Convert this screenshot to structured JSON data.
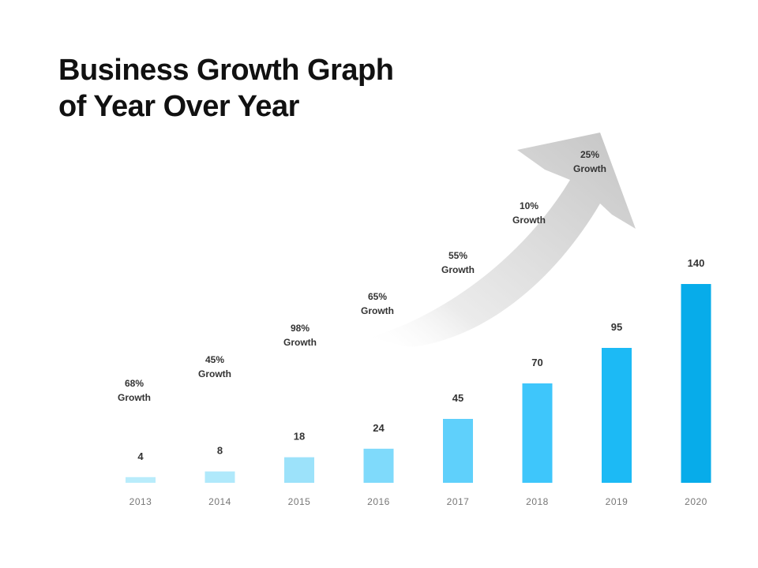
{
  "title_lines": [
    "Business Growth Graph",
    "of Year Over Year"
  ],
  "chart_data": {
    "type": "bar",
    "title": "Business Growth Graph of Year Over Year",
    "categories": [
      "2013",
      "2014",
      "2015",
      "2016",
      "2017",
      "2018",
      "2019",
      "2020"
    ],
    "values": [
      4,
      8,
      18,
      24,
      45,
      70,
      95,
      140
    ],
    "growth_labels": [
      [
        "68%",
        "Growth"
      ],
      [
        "45%",
        "Growth"
      ],
      [
        "98%",
        "Growth"
      ],
      [
        "65%",
        "Growth"
      ],
      [
        "55%",
        "Growth"
      ],
      [
        "10%",
        "Growth"
      ],
      [
        "25%",
        "Growth"
      ]
    ],
    "bar_colors": [
      "#b9ecfb",
      "#b0e9fb",
      "#9ce2fa",
      "#7fdafb",
      "#5fd0fb",
      "#3ec6fb",
      "#1cbaf5",
      "#07acea"
    ],
    "arrow_color": "#c9c9c9",
    "xlabel": "",
    "ylabel": "",
    "grid": false
  }
}
